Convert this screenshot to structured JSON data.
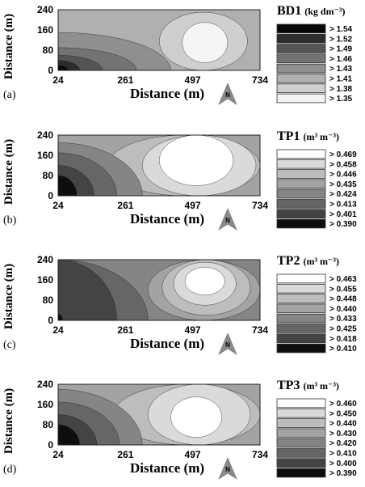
{
  "chart_data": [
    {
      "type": "heatmap",
      "panel_label": "(a)",
      "legend_title": "BD1",
      "legend_unit": "(kg dm⁻³)",
      "legend_values": [
        "> 1.54",
        "> 1.52",
        "> 1.49",
        "> 1.46",
        "> 1.43",
        "> 1.41",
        "> 1.38",
        "> 1.35"
      ],
      "legend_colors": [
        "#080808",
        "#2c2c2c",
        "#545454",
        "#737373",
        "#8f8f8f",
        "#b0b0b0",
        "#cfcfcf",
        "#f4f4f4"
      ],
      "xlabel": "Distance (m)",
      "ylabel": "Distance (m)",
      "x_ticks": [
        "24",
        "261",
        "497",
        "734"
      ],
      "y_ticks": [
        "240",
        "160",
        "80",
        "0"
      ],
      "xlim": [
        24,
        734
      ],
      "ylim": [
        0,
        240
      ],
      "zones": [
        {
          "level": 5,
          "x": [
            24,
            734
          ],
          "y": [
            0,
            240
          ]
        },
        {
          "level": 4,
          "x": [
            24,
            420
          ],
          "y": [
            0,
            150
          ]
        },
        {
          "level": 3,
          "x": [
            24,
            300
          ],
          "y": [
            0,
            90
          ]
        },
        {
          "level": 2,
          "x": [
            24,
            180
          ],
          "y": [
            0,
            60
          ]
        },
        {
          "level": 1,
          "x": [
            24,
            100
          ],
          "y": [
            0,
            40
          ]
        },
        {
          "level": 0,
          "x": [
            24,
            60
          ],
          "y": [
            0,
            20
          ]
        },
        {
          "level": 6,
          "x": [
            380,
            690
          ],
          "y": [
            0,
            230
          ]
        },
        {
          "level": 7,
          "x": [
            460,
            620
          ],
          "y": [
            30,
            190
          ]
        }
      ],
      "north_label": "N"
    },
    {
      "type": "heatmap",
      "panel_label": "(b)",
      "legend_title": "TP1",
      "legend_unit": "(m³ m⁻³)",
      "legend_values": [
        "> 0.469",
        "> 0.458",
        "> 0.446",
        "> 0.435",
        "> 0.424",
        "> 0.413",
        "> 0.401",
        "> 0.390"
      ],
      "legend_colors": [
        "#ffffff",
        "#dadada",
        "#bdbdbd",
        "#a3a3a3",
        "#858585",
        "#666666",
        "#444444",
        "#0e0e0e"
      ],
      "xlabel": "Distance (m)",
      "ylabel": "Distance (m)",
      "x_ticks": [
        "24",
        "261",
        "497",
        "734"
      ],
      "y_ticks": [
        "240",
        "160",
        "80",
        "0"
      ],
      "xlim": [
        24,
        734
      ],
      "ylim": [
        0,
        240
      ],
      "zones": [
        {
          "level": 3,
          "x": [
            24,
            734
          ],
          "y": [
            0,
            240
          ]
        },
        {
          "level": 2,
          "x": [
            200,
            734
          ],
          "y": [
            0,
            240
          ]
        },
        {
          "level": 1,
          "x": [
            320,
            720
          ],
          "y": [
            0,
            240
          ]
        },
        {
          "level": 0,
          "x": [
            380,
            640
          ],
          "y": [
            40,
            240
          ]
        },
        {
          "level": 4,
          "x": [
            24,
            320
          ],
          "y": [
            0,
            210
          ]
        },
        {
          "level": 5,
          "x": [
            24,
            230
          ],
          "y": [
            0,
            170
          ]
        },
        {
          "level": 6,
          "x": [
            24,
            150
          ],
          "y": [
            0,
            120
          ]
        },
        {
          "level": 7,
          "x": [
            24,
            90
          ],
          "y": [
            0,
            80
          ]
        }
      ],
      "north_label": "N"
    },
    {
      "type": "heatmap",
      "panel_label": "(c)",
      "legend_title": "TP2",
      "legend_unit": "(m³ m⁻³)",
      "legend_values": [
        "> 0.463",
        "> 0.455",
        "> 0.448",
        "> 0.440",
        "> 0.433",
        "> 0.425",
        "> 0.418",
        "> 0.410"
      ],
      "legend_colors": [
        "#ffffff",
        "#dadada",
        "#bdbdbd",
        "#a3a3a3",
        "#858585",
        "#666666",
        "#444444",
        "#0e0e0e"
      ],
      "xlabel": "Distance (m)",
      "ylabel": "Distance (m)",
      "x_ticks": [
        "24",
        "261",
        "497",
        "734"
      ],
      "y_ticks": [
        "240",
        "160",
        "80",
        "0"
      ],
      "xlim": [
        24,
        734
      ],
      "ylim": [
        0,
        240
      ],
      "zones": [
        {
          "level": 4,
          "x": [
            24,
            734
          ],
          "y": [
            0,
            240
          ]
        },
        {
          "level": 5,
          "x": [
            24,
            340
          ],
          "y": [
            0,
            240
          ]
        },
        {
          "level": 6,
          "x": [
            24,
            230
          ],
          "y": [
            0,
            240
          ]
        },
        {
          "level": 3,
          "x": [
            340,
            734
          ],
          "y": [
            0,
            240
          ]
        },
        {
          "level": 2,
          "x": [
            390,
            700
          ],
          "y": [
            20,
            240
          ]
        },
        {
          "level": 1,
          "x": [
            430,
            650
          ],
          "y": [
            60,
            230
          ]
        },
        {
          "level": 0,
          "x": [
            470,
            610
          ],
          "y": [
            100,
            210
          ]
        },
        {
          "level": 7,
          "x": [
            24,
            40
          ],
          "y": [
            0,
            25
          ]
        }
      ],
      "north_label": "N"
    },
    {
      "type": "heatmap",
      "panel_label": "(d)",
      "legend_title": "TP3",
      "legend_unit": "(m³ m⁻³)",
      "legend_values": [
        "> 0.460",
        "> 0.450",
        "> 0.440",
        "> 0.430",
        "> 0.420",
        "> 0.410",
        "> 0.400",
        "> 0.390"
      ],
      "legend_colors": [
        "#ffffff",
        "#dadada",
        "#bdbdbd",
        "#a3a3a3",
        "#858585",
        "#666666",
        "#444444",
        "#0e0e0e"
      ],
      "xlabel": "Distance (m)",
      "ylabel": "Distance (m)",
      "x_ticks": [
        "24",
        "261",
        "497",
        "734"
      ],
      "y_ticks": [
        "240",
        "160",
        "80",
        "0"
      ],
      "xlim": [
        24,
        734
      ],
      "ylim": [
        0,
        240
      ],
      "zones": [
        {
          "level": 3,
          "x": [
            24,
            734
          ],
          "y": [
            0,
            240
          ]
        },
        {
          "level": 2,
          "x": [
            220,
            734
          ],
          "y": [
            0,
            240
          ]
        },
        {
          "level": 1,
          "x": [
            340,
            700
          ],
          "y": [
            0,
            240
          ]
        },
        {
          "level": 0,
          "x": [
            420,
            600
          ],
          "y": [
            30,
            190
          ]
        },
        {
          "level": 4,
          "x": [
            24,
            320
          ],
          "y": [
            0,
            220
          ]
        },
        {
          "level": 5,
          "x": [
            24,
            240
          ],
          "y": [
            0,
            170
          ]
        },
        {
          "level": 6,
          "x": [
            24,
            160
          ],
          "y": [
            0,
            120
          ]
        },
        {
          "level": 7,
          "x": [
            24,
            100
          ],
          "y": [
            0,
            80
          ]
        }
      ],
      "north_label": "N"
    }
  ]
}
